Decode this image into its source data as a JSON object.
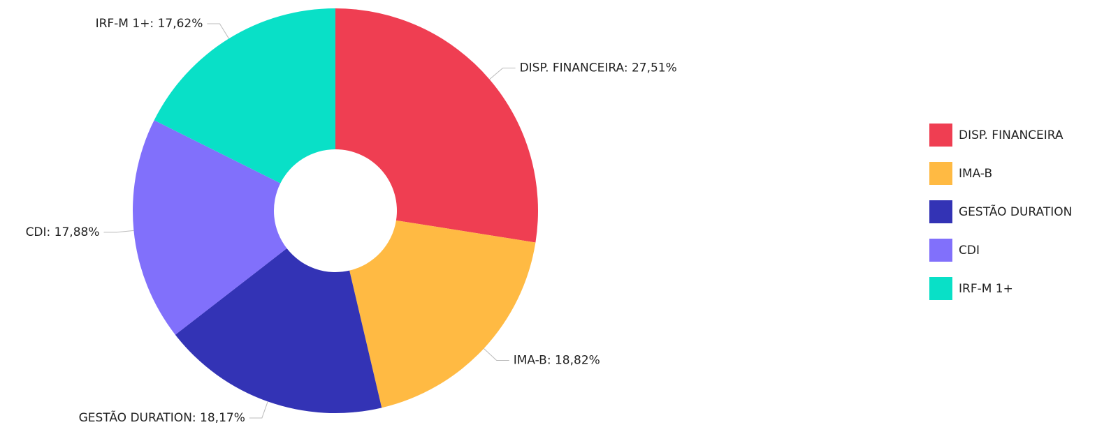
{
  "chart_data": {
    "type": "donut",
    "categories": [
      "DISP. FINANCEIRA",
      "IMA-B",
      "GESTÃO DURATION",
      "CDI",
      "IRF-M 1+"
    ],
    "values": [
      27.51,
      18.82,
      18.17,
      17.88,
      17.62
    ],
    "value_labels": [
      "DISP. FINANCEIRA: 27,51%",
      "IMA-B: 18,82%",
      "GESTÃO DURATION: 18,17%",
      "CDI: 17,88%",
      "IRF-M 1+: 17,62%"
    ],
    "colors": [
      "#ef3e52",
      "#ffba43",
      "#3333b5",
      "#8170fb",
      "#09e0c7"
    ],
    "legend": "right"
  }
}
